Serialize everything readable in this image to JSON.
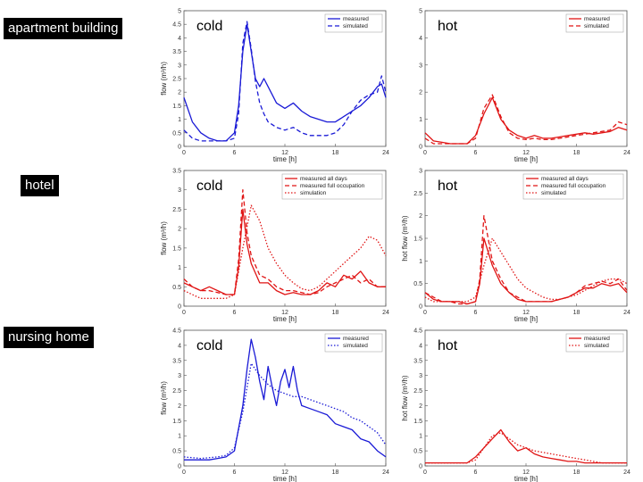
{
  "row_labels": [
    "apartment building",
    "hotel",
    "nursing home"
  ],
  "colors": {
    "cold": "#1a1ad6",
    "hot": "#e01414"
  },
  "chart_data": [
    {
      "id": "apartment-cold",
      "type": "line",
      "annotation": "cold",
      "xlabel": "time [h]",
      "ylabel": "flow (m³/h)",
      "xlim": [
        0,
        24
      ],
      "ylim": [
        0,
        5
      ],
      "xticks": [
        0,
        6,
        12,
        18,
        24
      ],
      "yticks": [
        0,
        0.5,
        1,
        1.5,
        2,
        2.5,
        3,
        3.5,
        4,
        4.5,
        5
      ],
      "legend": "top-right",
      "series": [
        {
          "name": "measured",
          "style": "solid",
          "x": [
            0,
            1,
            2,
            3,
            4,
            5,
            6,
            6.5,
            7,
            7.5,
            8,
            8.5,
            9,
            9.5,
            10,
            11,
            12,
            13,
            14,
            15,
            16,
            17,
            18,
            19,
            20,
            21,
            22,
            23,
            23.5,
            24
          ],
          "y": [
            1.8,
            0.9,
            0.5,
            0.3,
            0.2,
            0.2,
            0.5,
            1.5,
            3.5,
            4.5,
            3.5,
            2.5,
            2.2,
            2.5,
            2.2,
            1.6,
            1.4,
            1.6,
            1.3,
            1.1,
            1.0,
            0.9,
            0.9,
            1.1,
            1.3,
            1.5,
            1.8,
            2.2,
            2.3,
            1.8
          ]
        },
        {
          "name": "simulated",
          "style": "dashed",
          "x": [
            0,
            1,
            2,
            3,
            4,
            5,
            6,
            6.5,
            7,
            7.5,
            8,
            8.5,
            9,
            9.5,
            10,
            11,
            12,
            13,
            14,
            15,
            16,
            17,
            18,
            19,
            20,
            21,
            22,
            23,
            23.5,
            24
          ],
          "y": [
            0.6,
            0.3,
            0.2,
            0.2,
            0.2,
            0.2,
            0.3,
            1.2,
            3.8,
            4.6,
            3.6,
            2.4,
            1.6,
            1.2,
            0.9,
            0.7,
            0.6,
            0.7,
            0.5,
            0.4,
            0.4,
            0.4,
            0.5,
            0.8,
            1.3,
            1.7,
            1.9,
            2.0,
            2.6,
            2.0
          ]
        }
      ]
    },
    {
      "id": "apartment-hot",
      "type": "line",
      "annotation": "hot",
      "xlabel": "time [h]",
      "ylabel": "",
      "xlim": [
        0,
        24
      ],
      "ylim": [
        0,
        5
      ],
      "xticks": [
        0,
        6,
        12,
        18,
        24
      ],
      "yticks": [
        0,
        1,
        2,
        3,
        4,
        5
      ],
      "legend": "top-right",
      "series": [
        {
          "name": "measured",
          "style": "solid",
          "x": [
            0,
            1,
            2,
            3,
            4,
            5,
            6,
            7,
            8,
            9,
            10,
            11,
            12,
            13,
            14,
            15,
            16,
            17,
            18,
            19,
            20,
            21,
            22,
            23,
            24
          ],
          "y": [
            0.5,
            0.2,
            0.15,
            0.1,
            0.1,
            0.1,
            0.4,
            1.2,
            1.8,
            1.0,
            0.6,
            0.4,
            0.3,
            0.4,
            0.3,
            0.3,
            0.35,
            0.4,
            0.45,
            0.5,
            0.45,
            0.5,
            0.55,
            0.7,
            0.6
          ]
        },
        {
          "name": "simulated",
          "style": "dashed",
          "x": [
            0,
            1,
            2,
            3,
            4,
            5,
            6,
            7,
            8,
            9,
            10,
            11,
            12,
            13,
            14,
            15,
            16,
            17,
            18,
            19,
            20,
            21,
            22,
            23,
            24
          ],
          "y": [
            0.3,
            0.1,
            0.1,
            0.1,
            0.1,
            0.1,
            0.3,
            1.4,
            1.9,
            1.1,
            0.5,
            0.3,
            0.25,
            0.3,
            0.25,
            0.25,
            0.3,
            0.35,
            0.4,
            0.45,
            0.5,
            0.55,
            0.6,
            0.9,
            0.8
          ]
        }
      ]
    },
    {
      "id": "hotel-cold",
      "type": "line",
      "annotation": "cold",
      "xlabel": "time [h]",
      "ylabel": "flow (m³/h)",
      "xlim": [
        0,
        24
      ],
      "ylim": [
        0,
        3.5
      ],
      "xticks": [
        0,
        6,
        12,
        18,
        24
      ],
      "yticks": [
        0,
        0.5,
        1,
        1.5,
        2,
        2.5,
        3,
        3.5
      ],
      "legend": "top-right",
      "series": [
        {
          "name": "measured all days",
          "style": "solid",
          "x": [
            0,
            1,
            2,
            3,
            4,
            5,
            6,
            6.5,
            7,
            7.5,
            8,
            9,
            10,
            11,
            12,
            13,
            14,
            15,
            16,
            17,
            18,
            19,
            20,
            21,
            22,
            23,
            24
          ],
          "y": [
            0.6,
            0.5,
            0.4,
            0.5,
            0.4,
            0.3,
            0.3,
            1.0,
            2.5,
            1.6,
            1.1,
            0.6,
            0.6,
            0.4,
            0.3,
            0.35,
            0.3,
            0.3,
            0.4,
            0.6,
            0.5,
            0.8,
            0.7,
            0.9,
            0.6,
            0.5,
            0.5
          ]
        },
        {
          "name": "measured full occupation",
          "style": "dashed",
          "x": [
            0,
            1,
            2,
            3,
            4,
            5,
            6,
            6.5,
            7,
            7.5,
            8,
            9,
            10,
            11,
            12,
            13,
            14,
            15,
            16,
            17,
            18,
            19,
            20,
            21,
            22,
            23,
            24
          ],
          "y": [
            0.7,
            0.5,
            0.4,
            0.4,
            0.35,
            0.3,
            0.3,
            1.2,
            3.0,
            1.9,
            1.3,
            0.8,
            0.7,
            0.5,
            0.4,
            0.4,
            0.35,
            0.3,
            0.35,
            0.5,
            0.6,
            0.7,
            0.8,
            0.6,
            0.7,
            0.5,
            0.5
          ]
        },
        {
          "name": "simulation",
          "style": "dotted",
          "x": [
            0,
            1,
            2,
            3,
            4,
            5,
            6,
            7,
            8,
            9,
            10,
            11,
            12,
            13,
            14,
            15,
            16,
            17,
            18,
            19,
            20,
            21,
            22,
            23,
            24
          ],
          "y": [
            0.4,
            0.3,
            0.2,
            0.2,
            0.2,
            0.2,
            0.3,
            1.5,
            2.6,
            2.2,
            1.5,
            1.1,
            0.8,
            0.6,
            0.45,
            0.4,
            0.5,
            0.7,
            0.9,
            1.1,
            1.3,
            1.5,
            1.8,
            1.7,
            1.3
          ]
        }
      ]
    },
    {
      "id": "hotel-hot",
      "type": "line",
      "annotation": "hot",
      "xlabel": "time [h]",
      "ylabel": "hot flow (m³/h)",
      "xlim": [
        0,
        24
      ],
      "ylim": [
        0,
        3
      ],
      "xticks": [
        0,
        6,
        12,
        18,
        24
      ],
      "yticks": [
        0,
        0.5,
        1,
        1.5,
        2,
        2.5,
        3
      ],
      "legend": "top-right",
      "series": [
        {
          "name": "measured all days",
          "style": "solid",
          "x": [
            0,
            1,
            2,
            3,
            4,
            5,
            6,
            6.5,
            7,
            7.5,
            8,
            9,
            10,
            11,
            12,
            13,
            14,
            15,
            16,
            17,
            18,
            19,
            20,
            21,
            22,
            23,
            24
          ],
          "y": [
            0.3,
            0.15,
            0.1,
            0.1,
            0.1,
            0.05,
            0.1,
            0.5,
            1.5,
            1.2,
            0.9,
            0.5,
            0.3,
            0.15,
            0.1,
            0.1,
            0.1,
            0.1,
            0.15,
            0.2,
            0.3,
            0.4,
            0.4,
            0.5,
            0.45,
            0.5,
            0.3
          ]
        },
        {
          "name": "measured full occupation",
          "style": "dashed",
          "x": [
            0,
            1,
            2,
            3,
            4,
            5,
            6,
            6.5,
            7,
            7.5,
            8,
            9,
            10,
            11,
            12,
            13,
            14,
            15,
            16,
            17,
            18,
            19,
            20,
            21,
            22,
            23,
            24
          ],
          "y": [
            0.3,
            0.2,
            0.1,
            0.1,
            0.05,
            0.05,
            0.1,
            0.6,
            2.0,
            1.5,
            1.0,
            0.6,
            0.3,
            0.2,
            0.1,
            0.1,
            0.1,
            0.1,
            0.15,
            0.2,
            0.3,
            0.45,
            0.5,
            0.55,
            0.5,
            0.6,
            0.35
          ]
        },
        {
          "name": "simulated",
          "style": "dotted",
          "x": [
            0,
            1,
            2,
            3,
            4,
            5,
            6,
            7,
            8,
            9,
            10,
            11,
            12,
            13,
            14,
            15,
            16,
            17,
            18,
            19,
            20,
            21,
            22,
            23,
            24
          ],
          "y": [
            0.2,
            0.1,
            0.1,
            0.1,
            0.1,
            0.1,
            0.2,
            0.9,
            1.5,
            1.2,
            0.9,
            0.6,
            0.4,
            0.3,
            0.2,
            0.15,
            0.15,
            0.2,
            0.25,
            0.35,
            0.45,
            0.55,
            0.6,
            0.6,
            0.5
          ]
        }
      ]
    },
    {
      "id": "nursing-cold",
      "type": "line",
      "annotation": "cold",
      "xlabel": "time [h]",
      "ylabel": "flow (m³/h)",
      "xlim": [
        0,
        24
      ],
      "ylim": [
        0,
        4.5
      ],
      "xticks": [
        0,
        6,
        12,
        18,
        24
      ],
      "yticks": [
        0,
        0.5,
        1,
        1.5,
        2,
        2.5,
        3,
        3.5,
        4,
        4.5
      ],
      "legend": "top-right",
      "series": [
        {
          "name": "measured",
          "style": "solid",
          "x": [
            0,
            1,
            2,
            3,
            4,
            5,
            6,
            7,
            7.5,
            8,
            8.5,
            9,
            9.5,
            10,
            10.5,
            11,
            11.5,
            12,
            12.5,
            13,
            13.5,
            14,
            15,
            16,
            17,
            18,
            19,
            20,
            21,
            22,
            23,
            24
          ],
          "y": [
            0.2,
            0.2,
            0.2,
            0.2,
            0.25,
            0.3,
            0.5,
            2.0,
            3.2,
            4.2,
            3.6,
            2.8,
            2.2,
            3.3,
            2.6,
            2.0,
            2.8,
            3.2,
            2.6,
            3.3,
            2.5,
            2.0,
            1.9,
            1.8,
            1.7,
            1.4,
            1.3,
            1.2,
            0.9,
            0.8,
            0.5,
            0.3
          ]
        },
        {
          "name": "simulated",
          "style": "dotted",
          "x": [
            0,
            2,
            4,
            5,
            6,
            7,
            8,
            9,
            10,
            11,
            12,
            13,
            14,
            15,
            16,
            17,
            18,
            19,
            20,
            21,
            22,
            23,
            24
          ],
          "y": [
            0.3,
            0.25,
            0.3,
            0.35,
            0.6,
            1.8,
            3.4,
            3.0,
            2.7,
            2.5,
            2.4,
            2.3,
            2.3,
            2.2,
            2.1,
            2.0,
            1.9,
            1.8,
            1.6,
            1.5,
            1.3,
            1.1,
            0.7
          ]
        }
      ]
    },
    {
      "id": "nursing-hot",
      "type": "line",
      "annotation": "hot",
      "xlabel": "time [h]",
      "ylabel": "hot flow (m³/h)",
      "xlim": [
        0,
        24
      ],
      "ylim": [
        0,
        4.5
      ],
      "xticks": [
        0,
        6,
        12,
        18,
        24
      ],
      "yticks": [
        0,
        0.5,
        1,
        1.5,
        2,
        2.5,
        3,
        3.5,
        4,
        4.5
      ],
      "legend": "top-right",
      "series": [
        {
          "name": "measured",
          "style": "solid",
          "x": [
            0,
            1,
            2,
            3,
            4,
            5,
            6,
            7,
            8,
            9,
            10,
            11,
            12,
            13,
            14,
            15,
            16,
            17,
            18,
            19,
            20,
            21,
            22,
            23,
            24
          ],
          "y": [
            0.1,
            0.1,
            0.1,
            0.1,
            0.1,
            0.1,
            0.3,
            0.6,
            0.9,
            1.2,
            0.8,
            0.5,
            0.6,
            0.4,
            0.3,
            0.25,
            0.2,
            0.15,
            0.15,
            0.1,
            0.1,
            0.1,
            0.1,
            0.1,
            0.1
          ]
        },
        {
          "name": "simulated",
          "style": "dotted",
          "x": [
            0,
            1,
            2,
            3,
            4,
            5,
            6,
            7,
            8,
            9,
            10,
            11,
            12,
            13,
            14,
            15,
            16,
            17,
            18,
            19,
            20,
            21,
            22,
            23,
            24
          ],
          "y": [
            0.1,
            0.1,
            0.1,
            0.1,
            0.1,
            0.1,
            0.2,
            0.6,
            1.0,
            1.1,
            0.9,
            0.7,
            0.6,
            0.5,
            0.45,
            0.4,
            0.35,
            0.3,
            0.25,
            0.2,
            0.15,
            0.1,
            0.1,
            0.1,
            0.1
          ]
        }
      ]
    }
  ]
}
